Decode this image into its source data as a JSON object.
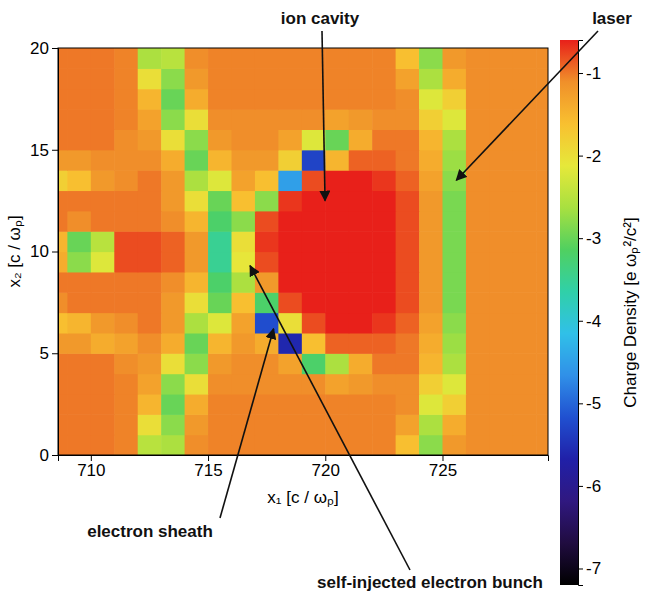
{
  "chart_data": {
    "type": "heatmap",
    "x_label": "x₁ [c / ωₚ]",
    "y_label": "x₂ [c / ωₚ]",
    "xlim": [
      708.6,
      729.5
    ],
    "ylim": [
      0,
      20
    ],
    "xticks": [
      710,
      715,
      720,
      725
    ],
    "yticks": [
      0,
      5,
      10,
      15,
      20
    ],
    "x": [
      708.5,
      709.5,
      710.5,
      711.5,
      712.5,
      713.5,
      714.5,
      715.5,
      716.5,
      717.5,
      718.5,
      719.5,
      720.5,
      721.5,
      722.5,
      723.5,
      724.5,
      725.5,
      726.5,
      727.5,
      728.5,
      729.5
    ],
    "y": [
      0.5,
      1.5,
      2.5,
      3.5,
      4.5,
      5.5,
      6.5,
      7.5,
      8.5,
      9.5,
      10.5,
      11.5,
      12.5,
      13.5,
      14.5,
      15.5,
      16.5,
      17.5,
      18.5,
      19.5
    ],
    "z": [
      [
        -1.0,
        -1.0,
        -1.0,
        -1.05,
        -2.5,
        -2.6,
        -1.1,
        -1.05,
        -1.05,
        -1.05,
        -1.05,
        -1.05,
        -1.05,
        -1.05,
        -1.05,
        -1.6,
        -2.8,
        -1.2,
        -1.1,
        -1.1,
        -1.1,
        -1.1
      ],
      [
        -1.0,
        -1.0,
        -1.0,
        -1.05,
        -2.0,
        -2.8,
        -1.2,
        -1.05,
        -1.05,
        -1.05,
        -1.05,
        -1.05,
        -1.05,
        -1.05,
        -1.05,
        -1.3,
        -2.6,
        -1.4,
        -1.1,
        -1.1,
        -1.1,
        -1.1
      ],
      [
        -1.0,
        -1.0,
        -1.0,
        -1.05,
        -1.5,
        -3.0,
        -1.4,
        -1.05,
        -1.05,
        -1.05,
        -1.05,
        -1.05,
        -1.05,
        -1.05,
        -1.05,
        -1.1,
        -2.2,
        -1.8,
        -1.1,
        -1.1,
        -1.1,
        -1.1
      ],
      [
        -1.0,
        -1.0,
        -1.0,
        -1.05,
        -1.3,
        -2.8,
        -2.0,
        -1.1,
        -1.1,
        -1.1,
        -1.1,
        -1.1,
        -1.3,
        -1.2,
        -1.1,
        -1.1,
        -1.8,
        -2.2,
        -1.1,
        -1.1,
        -1.1,
        -1.1
      ],
      [
        -1.0,
        -1.0,
        -1.0,
        -1.1,
        -1.2,
        -2.0,
        -2.8,
        -1.2,
        -1.1,
        -1.1,
        -1.3,
        -3.2,
        -2.6,
        -1.4,
        -1.0,
        -1.0,
        -1.5,
        -2.6,
        -1.1,
        -1.1,
        -1.1,
        -1.1
      ],
      [
        -1.2,
        -1.2,
        -1.4,
        -1.3,
        -1.1,
        -1.4,
        -3.0,
        -1.5,
        -1.2,
        -1.4,
        -5.6,
        -1.6,
        -0.9,
        -0.9,
        -0.9,
        -1.0,
        -1.4,
        -2.7,
        -1.1,
        -1.1,
        -1.1,
        -1.1
      ],
      [
        -1.6,
        -1.5,
        -1.2,
        -1.1,
        -1.0,
        -1.2,
        -2.6,
        -2.2,
        -1.3,
        -5.2,
        -2.0,
        -0.8,
        -0.6,
        -0.6,
        -0.7,
        -0.9,
        -1.3,
        -2.8,
        -1.1,
        -1.1,
        -1.1,
        -1.1
      ],
      [
        -1.1,
        -1.0,
        -1.0,
        -1.0,
        -1.0,
        -1.2,
        -2.0,
        -3.0,
        -1.6,
        -3.2,
        -0.8,
        -0.6,
        -0.6,
        -0.6,
        -0.6,
        -0.8,
        -1.2,
        -2.9,
        -1.1,
        -1.1,
        -1.1,
        -1.1
      ],
      [
        -1.0,
        -1.0,
        -1.0,
        -1.0,
        -1.0,
        -1.1,
        -1.5,
        -3.2,
        -2.6,
        -1.2,
        -0.6,
        -0.6,
        -0.6,
        -0.6,
        -0.6,
        -0.8,
        -1.2,
        -2.9,
        -1.1,
        -1.1,
        -1.1,
        -1.1
      ],
      [
        -1.4,
        -2.8,
        -2.2,
        -0.8,
        -0.8,
        -0.9,
        -1.2,
        -3.5,
        -2.1,
        -0.8,
        -0.6,
        -0.6,
        -0.6,
        -0.6,
        -0.6,
        -0.8,
        -1.2,
        -2.9,
        -1.1,
        -1.1,
        -1.1,
        -1.1
      ],
      [
        -1.5,
        -3.0,
        -2.5,
        -0.8,
        -0.8,
        -0.9,
        -1.2,
        -3.5,
        -2.0,
        -0.7,
        -0.6,
        -0.6,
        -0.6,
        -0.6,
        -0.6,
        -0.8,
        -1.2,
        -2.9,
        -1.1,
        -1.1,
        -1.1,
        -1.1
      ],
      [
        -1.0,
        -1.1,
        -1.0,
        -1.0,
        -1.0,
        -1.1,
        -1.5,
        -3.2,
        -2.8,
        -0.8,
        -0.6,
        -0.6,
        -0.6,
        -0.6,
        -0.6,
        -0.8,
        -1.2,
        -2.9,
        -1.1,
        -1.1,
        -1.1,
        -1.1
      ],
      [
        -1.0,
        -1.0,
        -1.0,
        -1.0,
        -1.0,
        -1.2,
        -2.0,
        -3.0,
        -1.6,
        -2.8,
        -0.7,
        -0.6,
        -0.6,
        -0.6,
        -0.6,
        -0.8,
        -1.2,
        -2.9,
        -1.1,
        -1.1,
        -1.1,
        -1.1
      ],
      [
        -1.8,
        -1.6,
        -1.2,
        -1.1,
        -1.0,
        -1.2,
        -2.6,
        -2.2,
        -1.3,
        -1.6,
        -4.5,
        -0.8,
        -0.6,
        -0.6,
        -0.7,
        -0.9,
        -1.3,
        -2.8,
        -1.1,
        -1.1,
        -1.1,
        -1.1
      ],
      [
        -1.2,
        -1.2,
        -1.1,
        -1.1,
        -1.1,
        -1.4,
        -3.0,
        -1.5,
        -1.2,
        -1.2,
        -1.8,
        -5.3,
        -1.5,
        -0.9,
        -0.9,
        -1.0,
        -1.4,
        -2.7,
        -1.1,
        -1.1,
        -1.1,
        -1.1
      ],
      [
        -1.0,
        -1.0,
        -1.0,
        -1.1,
        -1.2,
        -2.0,
        -2.8,
        -1.2,
        -1.1,
        -1.1,
        -1.3,
        -2.2,
        -3.0,
        -1.4,
        -1.0,
        -1.0,
        -1.5,
        -2.6,
        -1.1,
        -1.1,
        -1.1,
        -1.1
      ],
      [
        -1.0,
        -1.0,
        -1.0,
        -1.05,
        -1.3,
        -2.8,
        -2.0,
        -1.1,
        -1.1,
        -1.1,
        -1.1,
        -1.1,
        -1.3,
        -1.2,
        -1.1,
        -1.1,
        -1.8,
        -2.2,
        -1.1,
        -1.1,
        -1.1,
        -1.1
      ],
      [
        -1.0,
        -1.0,
        -1.0,
        -1.05,
        -1.5,
        -3.0,
        -1.4,
        -1.05,
        -1.05,
        -1.05,
        -1.05,
        -1.05,
        -1.05,
        -1.05,
        -1.05,
        -1.1,
        -2.2,
        -1.8,
        -1.1,
        -1.1,
        -1.1,
        -1.1
      ],
      [
        -1.0,
        -1.0,
        -1.0,
        -1.05,
        -2.0,
        -2.8,
        -1.2,
        -1.05,
        -1.05,
        -1.05,
        -1.05,
        -1.05,
        -1.05,
        -1.05,
        -1.05,
        -1.3,
        -2.6,
        -1.4,
        -1.1,
        -1.1,
        -1.1,
        -1.1
      ],
      [
        -1.0,
        -1.0,
        -1.0,
        -1.05,
        -2.6,
        -2.5,
        -1.1,
        -1.05,
        -1.05,
        -1.05,
        -1.05,
        -1.05,
        -1.05,
        -1.05,
        -1.05,
        -1.6,
        -2.8,
        -1.2,
        -1.1,
        -1.1,
        -1.1,
        -1.1
      ]
    ],
    "colorbar": {
      "title": "Charge Density [e ωₚ²/c²]",
      "lim": [
        -7.2,
        -0.6
      ],
      "ticks": [
        -1,
        -2,
        -3,
        -4,
        -5,
        -6,
        -7
      ]
    },
    "annotations": [
      "ion cavity",
      "laser",
      "electron sheath",
      "self-injected electron bunch"
    ]
  }
}
